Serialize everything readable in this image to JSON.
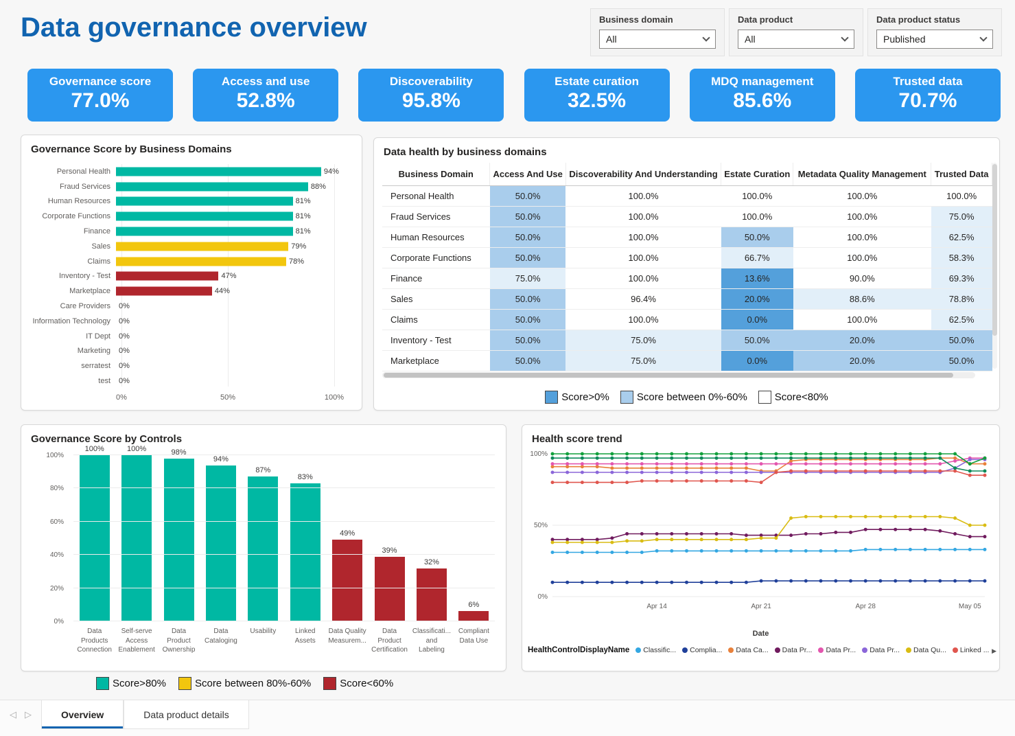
{
  "page": {
    "title": "Data governance overview"
  },
  "filters": [
    {
      "label": "Business domain",
      "value": "All"
    },
    {
      "label": "Data product",
      "value": "All"
    },
    {
      "label": "Data product status",
      "value": "Published"
    }
  ],
  "kpis": [
    {
      "label": "Governance score",
      "value": "77.0%"
    },
    {
      "label": "Access and use",
      "value": "52.8%"
    },
    {
      "label": "Discoverability",
      "value": "95.8%"
    },
    {
      "label": "Estate curation",
      "value": "32.5%"
    },
    {
      "label": "MDQ management",
      "value": "85.6%"
    },
    {
      "label": "Trusted data",
      "value": "70.7%"
    }
  ],
  "colors": {
    "kpi": "#2B97EF",
    "accent": "#1164B0",
    "band_high": "#00B8A3",
    "band_mid": "#F2C60E",
    "band_low": "#B0262D",
    "table_s0": "#FFFFFF",
    "table_s1": "#E2EFF9",
    "table_s2": "#A9CDEC",
    "table_s3": "#54A0DB"
  },
  "chart_data": [
    {
      "type": "bar",
      "orientation": "horizontal",
      "title": "Governance Score by Business Domains",
      "categories": [
        "Personal Health",
        "Fraud Services",
        "Human Resources",
        "Corporate Functions",
        "Finance",
        "Sales",
        "Claims",
        "Inventory - Test",
        "Marketplace",
        "Care Providers",
        "Information Technology",
        "IT Dept",
        "Marketing",
        "serratest",
        "test"
      ],
      "values": [
        94,
        88,
        81,
        81,
        81,
        79,
        78,
        47,
        44,
        0,
        0,
        0,
        0,
        0,
        0
      ],
      "bands": [
        "high",
        "high",
        "high",
        "high",
        "high",
        "mid",
        "mid",
        "low",
        "low",
        "zero",
        "zero",
        "zero",
        "zero",
        "zero",
        "zero"
      ],
      "x_ticks": [
        "0%",
        "50%",
        "100%"
      ],
      "xlim": [
        0,
        100
      ]
    },
    {
      "type": "table",
      "title": "Data health by business domains",
      "columns": [
        "Business Domain",
        "Access And Use",
        "Discoverability And Understanding",
        "Estate Curation",
        "Metadata Quality Management",
        "Trusted Data"
      ],
      "rows": [
        {
          "domain": "Personal Health",
          "values": [
            "50.0%",
            "100.0%",
            "100.0%",
            "100.0%",
            "100.0%"
          ],
          "shades": [
            2,
            0,
            0,
            0,
            0
          ]
        },
        {
          "domain": "Fraud Services",
          "values": [
            "50.0%",
            "100.0%",
            "100.0%",
            "100.0%",
            "75.0%"
          ],
          "shades": [
            2,
            0,
            0,
            0,
            1
          ]
        },
        {
          "domain": "Human Resources",
          "values": [
            "50.0%",
            "100.0%",
            "50.0%",
            "100.0%",
            "62.5%"
          ],
          "shades": [
            2,
            0,
            2,
            0,
            1
          ]
        },
        {
          "domain": "Corporate Functions",
          "values": [
            "50.0%",
            "100.0%",
            "66.7%",
            "100.0%",
            "58.3%"
          ],
          "shades": [
            2,
            0,
            1,
            0,
            1
          ]
        },
        {
          "domain": "Finance",
          "values": [
            "75.0%",
            "100.0%",
            "13.6%",
            "90.0%",
            "69.3%"
          ],
          "shades": [
            1,
            0,
            3,
            0,
            1
          ]
        },
        {
          "domain": "Sales",
          "values": [
            "50.0%",
            "96.4%",
            "20.0%",
            "88.6%",
            "78.8%"
          ],
          "shades": [
            2,
            0,
            3,
            1,
            1
          ]
        },
        {
          "domain": "Claims",
          "values": [
            "50.0%",
            "100.0%",
            "0.0%",
            "100.0%",
            "62.5%"
          ],
          "shades": [
            2,
            0,
            3,
            0,
            1
          ]
        },
        {
          "domain": "Inventory - Test",
          "values": [
            "50.0%",
            "75.0%",
            "50.0%",
            "20.0%",
            "50.0%"
          ],
          "shades": [
            2,
            1,
            2,
            2,
            2
          ]
        },
        {
          "domain": "Marketplace",
          "values": [
            "50.0%",
            "75.0%",
            "0.0%",
            "20.0%",
            "50.0%"
          ],
          "shades": [
            2,
            1,
            3,
            2,
            2
          ]
        }
      ],
      "legend": [
        {
          "label": "Score>0%",
          "shade": 3
        },
        {
          "label": "Score between 0%-60%",
          "shade": 2
        },
        {
          "label": "Score<80%",
          "shade": 0
        }
      ]
    },
    {
      "type": "bar",
      "orientation": "vertical",
      "title": "Governance Score by Controls",
      "categories": [
        "Data Products Connection",
        "Self-serve Access Enablement",
        "Data Product Ownership",
        "Data Cataloging",
        "Usability",
        "Linked Assets",
        "Data Quality Measurem...",
        "Data Product Certification",
        "Classificati... and Labeling",
        "Compliant Data Use"
      ],
      "category_lines": [
        [
          "Data",
          "Products",
          "Connection"
        ],
        [
          "Self-serve",
          "Access",
          "Enablement"
        ],
        [
          "Data",
          "Product",
          "Ownership"
        ],
        [
          "Data",
          "Cataloging"
        ],
        [
          "Usability"
        ],
        [
          "Linked",
          "Assets"
        ],
        [
          "Data Quality",
          "Measurem..."
        ],
        [
          "Data",
          "Product",
          "Certification"
        ],
        [
          "Classificati...",
          "and",
          "Labeling"
        ],
        [
          "Compliant",
          "Data Use"
        ]
      ],
      "values": [
        100,
        100,
        98,
        94,
        87,
        83,
        49,
        39,
        32,
        6
      ],
      "value_labels": [
        "100%",
        "100%",
        "98%",
        "94%",
        "87%",
        "83%",
        "49%",
        "39%",
        "32%",
        "6%"
      ],
      "bands": [
        "high",
        "high",
        "high",
        "high",
        "high",
        "high",
        "low",
        "low",
        "low",
        "low"
      ],
      "y_ticks": [
        "0%",
        "20%",
        "40%",
        "60%",
        "80%",
        "100%"
      ],
      "ylim": [
        0,
        100
      ],
      "legend": [
        {
          "label": "Score>80%",
          "band": "high"
        },
        {
          "label": "Score between 80%-60%",
          "band": "mid"
        },
        {
          "label": "Score<60%",
          "band": "low"
        }
      ]
    },
    {
      "type": "line",
      "title": "Health score trend",
      "xlabel": "Date",
      "x_ticks": [
        {
          "index": 7,
          "label": "Apr 14"
        },
        {
          "index": 14,
          "label": "Apr 21"
        },
        {
          "index": 21,
          "label": "Apr 28"
        },
        {
          "index": 28,
          "label": "May 05"
        }
      ],
      "y_ticks": [
        0,
        50,
        100
      ],
      "y_tick_labels": [
        "0%",
        "50%",
        "100%"
      ],
      "ylim": [
        0,
        100
      ],
      "n_points": 30,
      "legend_title": "HealthControlDisplayName",
      "legend": [
        {
          "label": "Classific...",
          "color": "#33A7E2"
        },
        {
          "label": "Complia...",
          "color": "#20409A"
        },
        {
          "label": "Data Ca...",
          "color": "#E8813B"
        },
        {
          "label": "Data Pr...",
          "color": "#701B5E"
        },
        {
          "label": "Data Pr...",
          "color": "#E356AE"
        },
        {
          "label": "Data Pr...",
          "color": "#8B66D9"
        },
        {
          "label": "Data Qu...",
          "color": "#D9BC13"
        },
        {
          "label": "Linked ...",
          "color": "#E0564E"
        }
      ],
      "series": [
        {
          "name": "Classific...",
          "color": "#33A7E2",
          "values": [
            31,
            31,
            31,
            31,
            31,
            31,
            31,
            32,
            32,
            32,
            32,
            32,
            32,
            32,
            32,
            32,
            32,
            32,
            32,
            32,
            32,
            33,
            33,
            33,
            33,
            33,
            33,
            33,
            33,
            33
          ]
        },
        {
          "name": "Complia...",
          "color": "#20409A",
          "values": [
            10,
            10,
            10,
            10,
            10,
            10,
            10,
            10,
            10,
            10,
            10,
            10,
            10,
            10,
            11,
            11,
            11,
            11,
            11,
            11,
            11,
            11,
            11,
            11,
            11,
            11,
            11,
            11,
            11,
            11
          ]
        },
        {
          "name": "Data Ca...",
          "color": "#E8813B",
          "values": [
            91,
            91,
            91,
            91,
            90,
            90,
            90,
            90,
            90,
            90,
            90,
            90,
            90,
            90,
            88,
            88,
            95,
            96,
            96,
            96,
            96,
            96,
            96,
            96,
            96,
            96,
            97,
            97,
            93,
            93
          ]
        },
        {
          "name": "Data Pr...",
          "color": "#701B5E",
          "values": [
            40,
            40,
            40,
            40,
            41,
            44,
            44,
            44,
            44,
            44,
            44,
            44,
            44,
            43,
            43,
            43,
            43,
            44,
            44,
            45,
            45,
            47,
            47,
            47,
            47,
            47,
            46,
            44,
            42,
            42
          ]
        },
        {
          "name": "Data Pr...",
          "color": "#E356AE",
          "values": [
            93,
            93,
            93,
            93,
            93,
            93,
            93,
            93,
            93,
            93,
            93,
            93,
            93,
            93,
            93,
            93,
            93,
            93,
            93,
            93,
            93,
            93,
            93,
            93,
            93,
            93,
            93,
            95,
            97,
            97
          ]
        },
        {
          "name": "Data Pr...",
          "color": "#8B66D9",
          "values": [
            87,
            87,
            87,
            87,
            87,
            87,
            87,
            87,
            87,
            87,
            87,
            87,
            87,
            87,
            87,
            87,
            87,
            87,
            87,
            87,
            87,
            87,
            87,
            87,
            87,
            87,
            87,
            90,
            96,
            96
          ]
        },
        {
          "name": "Data Qu...",
          "color": "#D9BC13",
          "values": [
            38,
            38,
            38,
            38,
            38,
            39,
            39,
            40,
            40,
            40,
            40,
            40,
            40,
            40,
            41,
            41,
            55,
            56,
            56,
            56,
            56,
            56,
            56,
            56,
            56,
            56,
            56,
            55,
            50,
            50
          ]
        },
        {
          "name": "Linked ...",
          "color": "#E0564E",
          "values": [
            80,
            80,
            80,
            80,
            80,
            80,
            81,
            81,
            81,
            81,
            81,
            81,
            81,
            81,
            80,
            87,
            88,
            88,
            88,
            88,
            88,
            88,
            88,
            88,
            88,
            88,
            88,
            88,
            85,
            85
          ]
        },
        {
          "name": "",
          "color": "#12A03C",
          "values": [
            100,
            100,
            100,
            100,
            100,
            100,
            100,
            100,
            100,
            100,
            100,
            100,
            100,
            100,
            100,
            100,
            100,
            100,
            100,
            100,
            100,
            100,
            100,
            100,
            100,
            100,
            100,
            100,
            93,
            97
          ]
        },
        {
          "name": "",
          "color": "#0E8A5A",
          "values": [
            97,
            97,
            97,
            97,
            97,
            97,
            97,
            97,
            97,
            97,
            97,
            97,
            97,
            97,
            97,
            97,
            97,
            97,
            97,
            97,
            97,
            97,
            97,
            97,
            97,
            97,
            97,
            90,
            88,
            88
          ]
        }
      ]
    }
  ],
  "icons": {
    "prev": "◁",
    "next": "▷",
    "legend_arrow": "▶"
  },
  "tabs": [
    {
      "label": "Overview",
      "active": true
    },
    {
      "label": "Data product details",
      "active": false
    }
  ]
}
